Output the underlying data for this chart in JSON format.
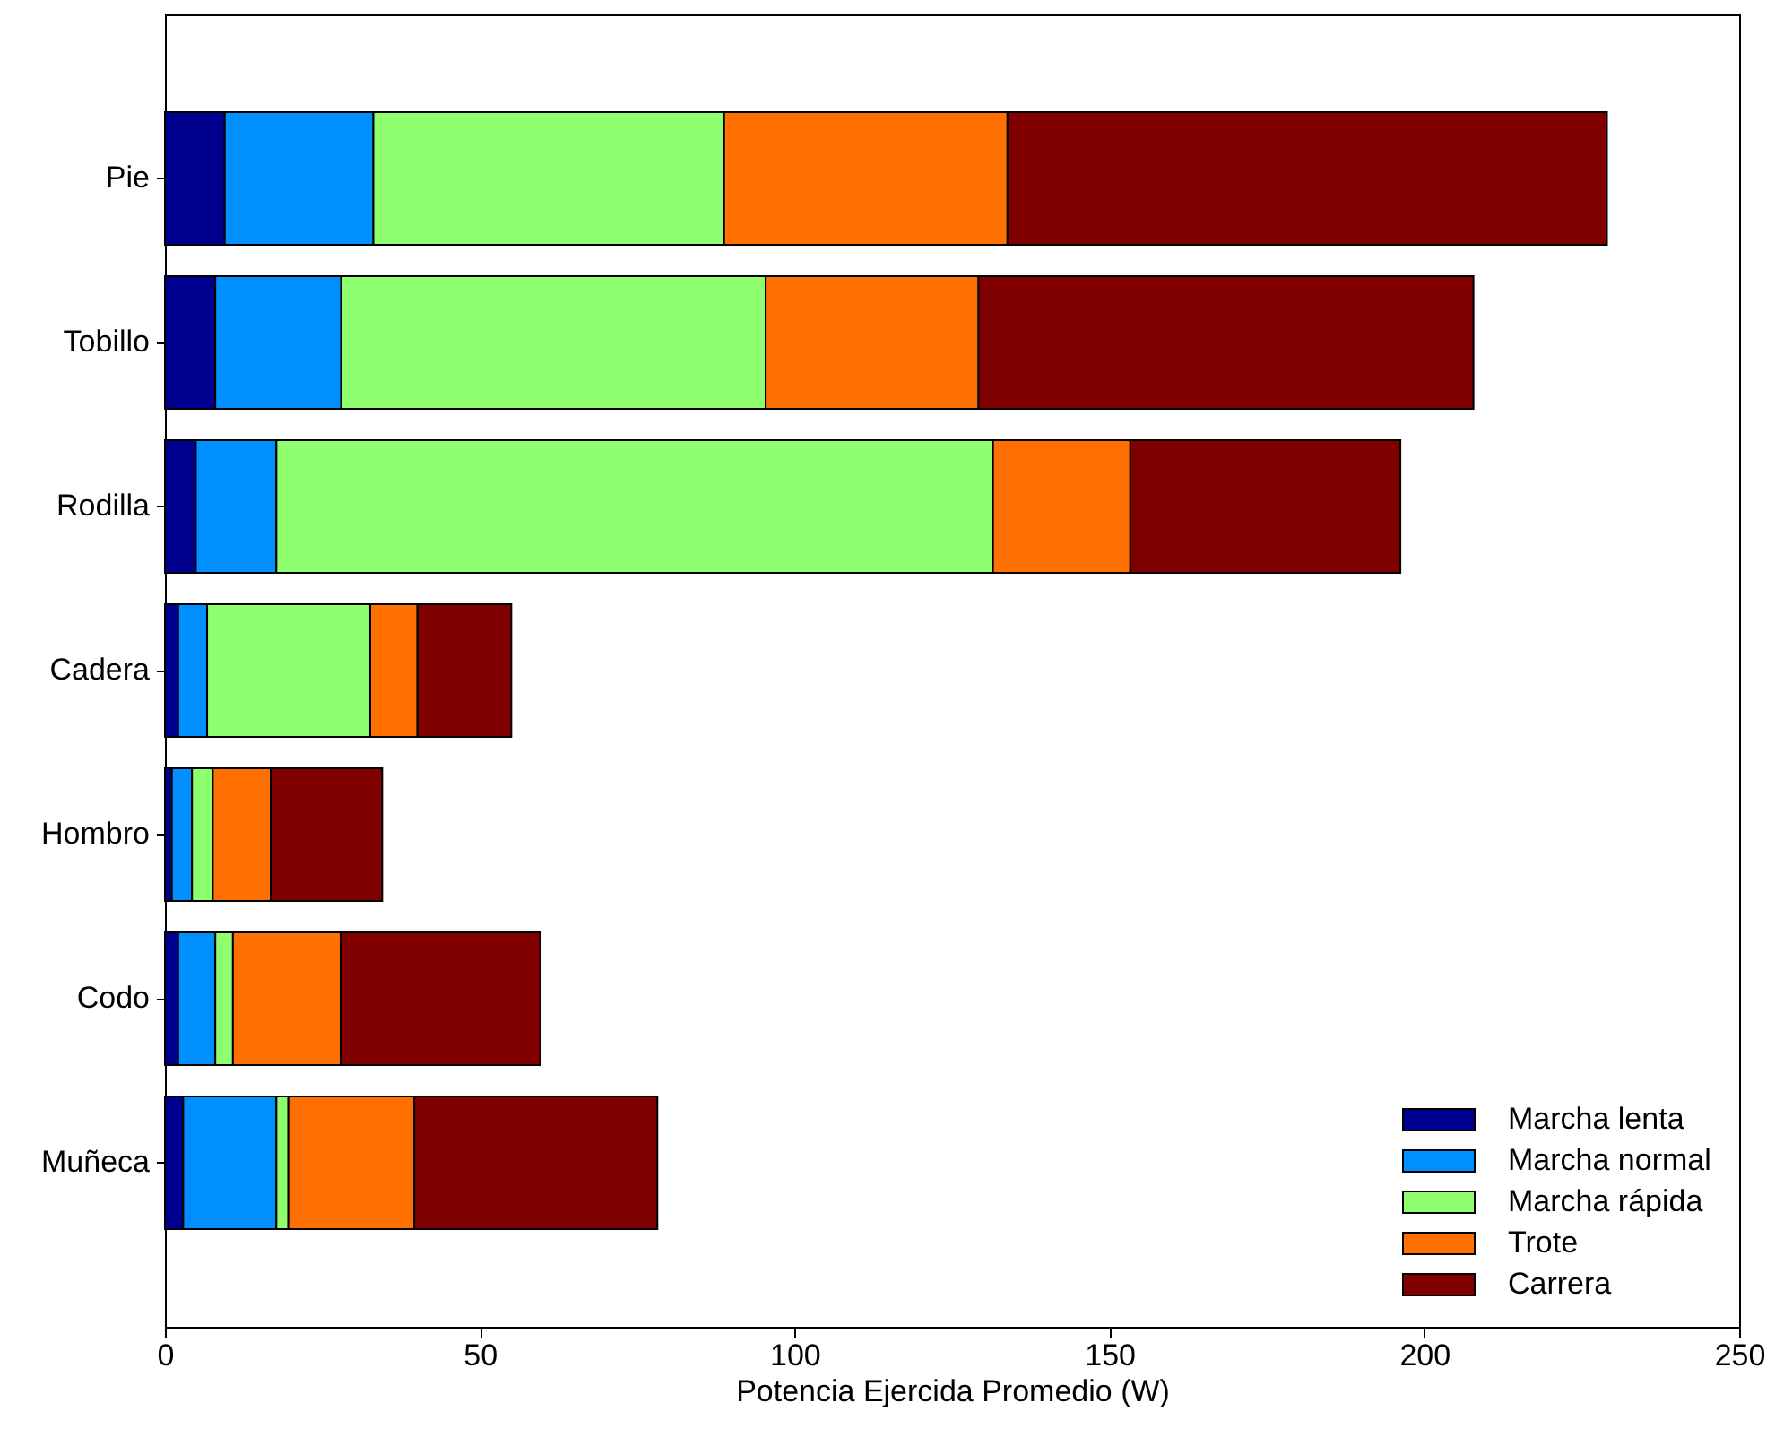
{
  "chart_data": {
    "type": "bar",
    "orientation": "horizontal",
    "stacked": true,
    "categories": [
      "Pie",
      "Tobillo",
      "Rodilla",
      "Cadera",
      "Hombro",
      "Codo",
      "Muñeca"
    ],
    "series": [
      {
        "name": "Marcha lenta",
        "color": "#00008f",
        "values": [
          9.5,
          8.0,
          4.9,
          2.1,
          1.1,
          2.1,
          2.9
        ]
      },
      {
        "name": "Marcha normal",
        "color": "#008fff",
        "values": [
          23.6,
          20.0,
          12.8,
          4.6,
          3.2,
          5.9,
          14.8
        ]
      },
      {
        "name": "Marcha rápida",
        "color": "#8fff70",
        "values": [
          55.7,
          67.4,
          113.8,
          25.9,
          3.3,
          2.8,
          1.9
        ]
      },
      {
        "name": "Trote",
        "color": "#ff7000",
        "values": [
          45.0,
          33.8,
          21.8,
          7.5,
          9.2,
          17.1,
          20.0
        ]
      },
      {
        "name": "Carrera",
        "color": "#800000",
        "values": [
          95.2,
          78.6,
          42.9,
          14.9,
          17.7,
          31.7,
          38.6
        ]
      }
    ],
    "xlabel": "Potencia Ejercida Promedio (W)",
    "xlim": [
      0,
      250
    ],
    "xticks": [
      0,
      50,
      100,
      150,
      200,
      250
    ],
    "grid": false,
    "legend": "bottom right"
  }
}
